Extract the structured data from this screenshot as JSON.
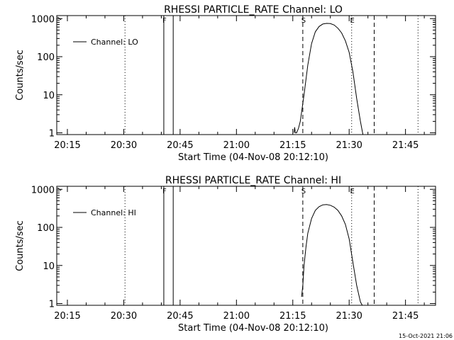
{
  "chart_data": [
    {
      "type": "line",
      "title": "RHESSI PARTICLE_RATE Channel: LO",
      "xlabel": "Start Time (04-Nov-08 20:12:10)",
      "ylabel": "Counts/sec",
      "y_scale": "log",
      "ylim": [
        0.9,
        1200
      ],
      "xlim": [
        "20:12:10",
        "21:53:00"
      ],
      "y_ticks": [
        "1",
        "10",
        "100",
        "1000"
      ],
      "x_ticks": [
        "20:15",
        "20:30",
        "20:45",
        "21:00",
        "21:15",
        "21:30",
        "21:45"
      ],
      "legend": {
        "position": "top-left",
        "entries": [
          "Channel: LO"
        ]
      },
      "markers": [
        {
          "label": "F",
          "time": "20:40:40",
          "style": "solid"
        },
        {
          "label": "",
          "time": "20:43:10",
          "style": "solid"
        },
        {
          "label": "S",
          "time": "21:17:40",
          "style": "dashed"
        },
        {
          "label": "E",
          "time": "21:30:40",
          "style": "dotted"
        },
        {
          "label": "",
          "time": "21:36:40",
          "style": "dashed"
        },
        {
          "label": "",
          "time": "20:30:20",
          "style": "dotted"
        },
        {
          "label": "",
          "time": "21:48:20",
          "style": "dotted"
        }
      ],
      "series": [
        {
          "name": "Channel: LO",
          "x": [
            "21:15:20",
            "21:15:30",
            "21:15:40",
            "21:16:00",
            "21:16:30",
            "21:17:00",
            "21:18:00",
            "21:19:00",
            "21:20:00",
            "21:21:00",
            "21:22:00",
            "21:23:00",
            "21:24:00",
            "21:25:00",
            "21:26:00",
            "21:27:00",
            "21:28:00",
            "21:29:00",
            "21:30:00",
            "21:31:00",
            "21:32:00",
            "21:33:00",
            "21:33:40"
          ],
          "y": [
            1.0,
            1.4,
            1.0,
            1.0,
            1.3,
            2.0,
            10,
            60,
            220,
            450,
            620,
            720,
            750,
            740,
            680,
            560,
            420,
            260,
            130,
            40,
            8,
            2,
            0.9
          ]
        }
      ]
    },
    {
      "type": "line",
      "title": "RHESSI PARTICLE_RATE Channel: HI",
      "xlabel": "Start Time (04-Nov-08 20:12:10)",
      "ylabel": "Counts/sec",
      "y_scale": "log",
      "ylim": [
        0.9,
        1200
      ],
      "xlim": [
        "20:12:10",
        "21:53:00"
      ],
      "y_ticks": [
        "1",
        "10",
        "100",
        "1000"
      ],
      "x_ticks": [
        "20:15",
        "20:30",
        "20:45",
        "21:00",
        "21:15",
        "21:30",
        "21:45"
      ],
      "legend": {
        "position": "top-left",
        "entries": [
          "Channel: HI"
        ]
      },
      "markers": [
        {
          "label": "F",
          "time": "20:40:40",
          "style": "solid"
        },
        {
          "label": "",
          "time": "20:43:10",
          "style": "solid"
        },
        {
          "label": "S",
          "time": "21:17:40",
          "style": "dashed"
        },
        {
          "label": "E",
          "time": "21:30:40",
          "style": "dotted"
        },
        {
          "label": "",
          "time": "21:36:40",
          "style": "dashed"
        },
        {
          "label": "",
          "time": "20:30:20",
          "style": "dotted"
        },
        {
          "label": "",
          "time": "21:48:20",
          "style": "dotted"
        }
      ],
      "series": [
        {
          "name": "Channel: HI",
          "x": [
            "21:17:20",
            "21:17:40",
            "21:18:00",
            "21:18:30",
            "21:19:00",
            "21:20:00",
            "21:21:00",
            "21:22:00",
            "21:23:00",
            "21:24:00",
            "21:25:00",
            "21:26:00",
            "21:27:00",
            "21:28:00",
            "21:29:00",
            "21:30:00",
            "21:31:00",
            "21:32:00",
            "21:33:00",
            "21:33:30"
          ],
          "y": [
            1.5,
            3,
            10,
            30,
            70,
            170,
            280,
            350,
            390,
            400,
            380,
            340,
            280,
            200,
            120,
            50,
            12,
            3,
            1.1,
            0.9
          ]
        }
      ]
    }
  ],
  "footer": {
    "timestamp": "15-Oct-2021 21:06"
  }
}
